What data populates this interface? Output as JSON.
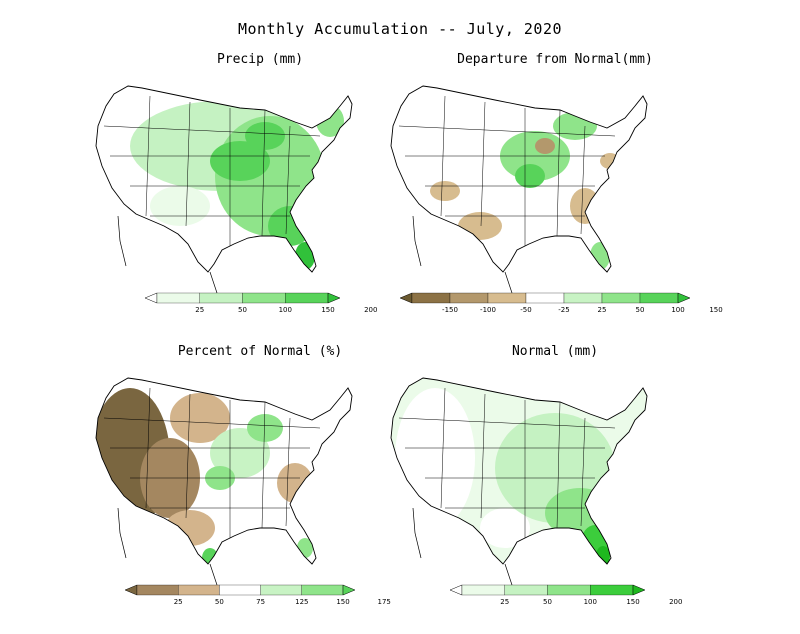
{
  "title": "Monthly Accumulation -- July, 2020",
  "panels": [
    {
      "title": "Precip (mm)",
      "legend": {
        "type": "sequential-green",
        "colors": [
          "#ffffff",
          "#ebfbe9",
          "#c5f2c2",
          "#8fe48a",
          "#58d35a",
          "#31c13a"
        ],
        "ticks": [
          "25",
          "50",
          "100",
          "150",
          "200"
        ]
      }
    },
    {
      "title": "Departure from Normal(mm)",
      "legend": {
        "type": "diverging",
        "colors": [
          "#6b5a30",
          "#8c7245",
          "#b3986c",
          "#d7bc8f",
          "#ffffff",
          "#c8f3c4",
          "#8fe48a",
          "#58d35a",
          "#31c13a"
        ],
        "ticks": [
          "-150",
          "-100",
          "-50",
          "-25",
          "25",
          "50",
          "100",
          "150"
        ]
      }
    },
    {
      "title": "Percent of Normal (%)",
      "legend": {
        "type": "diverging",
        "colors": [
          "#7a6640",
          "#a48760",
          "#d3b48c",
          "#ffffff",
          "#c8f3c4",
          "#8fe48a",
          "#58d35a"
        ],
        "ticks": [
          "25",
          "50",
          "75",
          "125",
          "150",
          "175"
        ]
      }
    },
    {
      "title": "Normal (mm)",
      "legend": {
        "type": "sequential-green",
        "colors": [
          "#ffffff",
          "#ebfbe9",
          "#c5f2c2",
          "#8fe48a",
          "#3ccd3c",
          "#1fb81f"
        ],
        "ticks": [
          "25",
          "50",
          "100",
          "150",
          "200"
        ]
      }
    }
  ]
}
